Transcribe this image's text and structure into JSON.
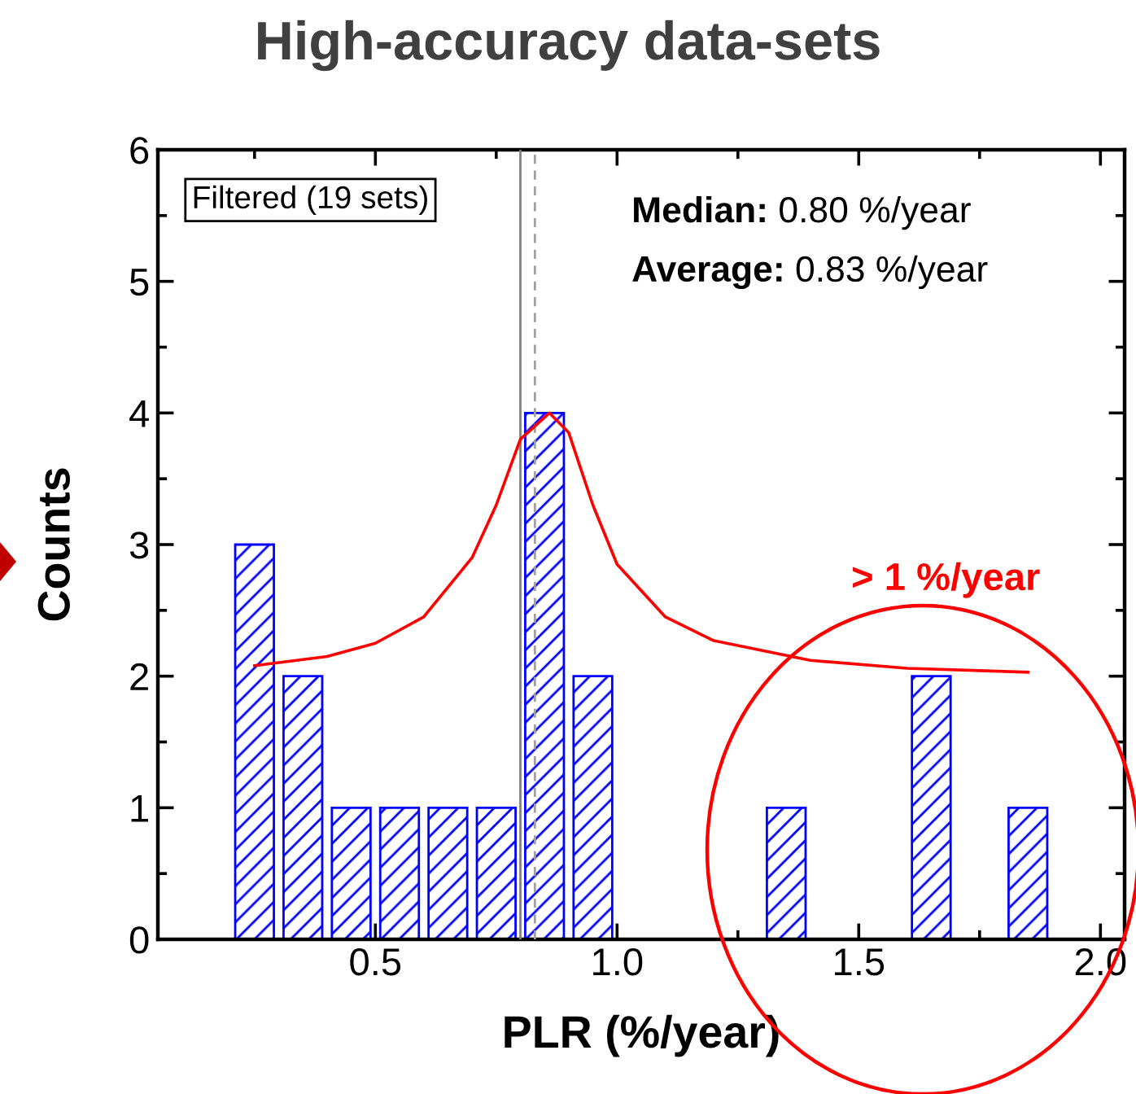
{
  "chart_data": {
    "type": "histogram",
    "title": "High-accuracy data-sets",
    "xlabel": "PLR (%/year)",
    "ylabel": "Counts",
    "bins": [
      0.2,
      0.3,
      0.4,
      0.5,
      0.6,
      0.7,
      0.8,
      0.9,
      1.0,
      1.1,
      1.2,
      1.3,
      1.4,
      1.5,
      1.6,
      1.7,
      1.8,
      1.9
    ],
    "values": [
      3,
      2,
      1,
      1,
      1,
      1,
      4,
      2,
      0,
      0,
      0,
      1,
      0,
      0,
      2,
      0,
      1
    ],
    "color": "#0000ff",
    "series": [
      {
        "type": "line",
        "color": "#ff0000",
        "x": [
          0.25,
          0.4,
          0.5,
          0.6,
          0.7,
          0.75,
          0.8,
          0.86,
          0.9,
          0.95,
          1.0,
          1.1,
          1.2,
          1.4,
          1.6,
          1.85
        ],
        "values": [
          2.08,
          2.15,
          2.25,
          2.45,
          2.9,
          3.3,
          3.8,
          4.0,
          3.85,
          3.3,
          2.85,
          2.45,
          2.27,
          2.12,
          2.06,
          2.03
        ]
      }
    ],
    "ref_lines": [
      {
        "axis": "x",
        "value": 0.8,
        "color": "#808080",
        "line_style": "solid"
      },
      {
        "axis": "x",
        "value": 0.83,
        "color": "#a0a0a0",
        "line_style": "dashed"
      }
    ],
    "annotations": [
      "Filtered (19 sets)",
      "Median: 0.80 %/year",
      "Average: 0.83 %/year",
      "> 1 %/year"
    ],
    "xlim": [
      0.05,
      2.05
    ],
    "xticks": [
      0.5,
      {
        "value": 1.0,
        "label": "1.0"
      },
      1.5,
      {
        "value": 2.0,
        "label": "2.0"
      }
    ],
    "ylim": [
      0,
      6
    ],
    "yticks": [
      0,
      1,
      2,
      3,
      4,
      5,
      6
    ],
    "grid": false,
    "legend": false
  }
}
